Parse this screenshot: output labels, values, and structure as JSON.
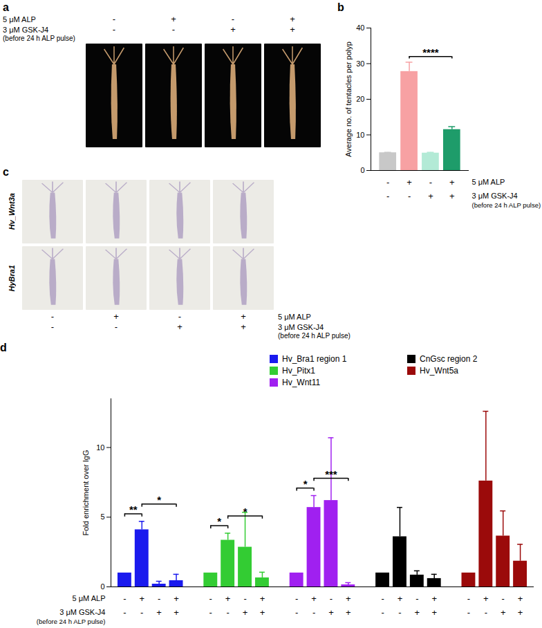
{
  "photo_panels": [
    {
      "title": "a",
      "conditions": [
        {
          "label": "5 μM ALP",
          "values": [
            "-",
            "+",
            "-",
            "+"
          ]
        },
        {
          "label": "3 μM GSK-J4",
          "note": "(before 24 h ALP pulse)",
          "values": [
            "-",
            "-",
            "+",
            "+"
          ]
        }
      ]
    },
    {
      "title": "c",
      "row_labels": [
        "Hv_Wnt3a",
        "HyBra1"
      ],
      "conditions": [
        {
          "label": "5 μM ALP",
          "values": [
            "-",
            "+",
            "-",
            "+"
          ]
        },
        {
          "label": "3 μM GSK-J4",
          "note": "(before 24 h ALP pulse)",
          "values": [
            "-",
            "-",
            "+",
            "+"
          ]
        }
      ]
    }
  ],
  "chart_data": [
    {
      "type": "bar",
      "title": "b",
      "categories": [
        null,
        null,
        null,
        null
      ],
      "values": [
        5,
        27.8,
        4.9,
        11.5
      ],
      "errors": [
        0.1,
        2.6,
        0.2,
        0.8
      ],
      "colors": [
        "#c8c8c8",
        "#f7a1a3",
        "#b3ead6",
        "#1e9c6a"
      ],
      "ylabel": "Average no. of tentacles per polyp",
      "ylim": [
        0,
        40
      ],
      "yticks": [
        0,
        10,
        20,
        30,
        40
      ],
      "tick_labels": "y",
      "significance": [
        {
          "from": 1,
          "to": 3,
          "label": "****"
        }
      ],
      "conditions": [
        {
          "label": "5 μM ALP",
          "values": [
            "-",
            "+",
            "-",
            "+"
          ]
        },
        {
          "label": "3 μM GSK-J4",
          "note": "(before 24 h ALP pulse)",
          "values": [
            "-",
            "-",
            "+",
            "+"
          ]
        }
      ]
    },
    {
      "type": "bar",
      "title": "d",
      "ylabel": "Fold enrichment over IgG",
      "ylim": [
        0,
        13.5
      ],
      "yticks": [
        0,
        5,
        10
      ],
      "tick_labels": "y",
      "legend": "top",
      "series": [
        {
          "name": "Hv_Bra1 region 1",
          "color": "#1a1aee",
          "values": [
            1,
            4.1,
            0.2,
            0.45
          ],
          "errors": [
            0,
            0.6,
            0.2,
            0.45
          ],
          "significance": [
            {
              "from": 0,
              "to": 1,
              "label": "**"
            },
            {
              "from": 1,
              "to": 3,
              "label": "*"
            }
          ]
        },
        {
          "name": "Hv_Pitx1",
          "color": "#33cc33",
          "values": [
            1,
            3.35,
            2.85,
            0.65
          ],
          "errors": [
            0,
            0.5,
            2.5,
            0.4
          ],
          "significance": [
            {
              "from": 0,
              "to": 1,
              "label": "*"
            },
            {
              "from": 1,
              "to": 3,
              "label": "*"
            }
          ]
        },
        {
          "name": "Hv_Wnt11",
          "color": "#a020f0",
          "values": [
            1,
            5.7,
            6.2,
            0.15
          ],
          "errors": [
            0,
            0.85,
            4.5,
            0.15
          ],
          "significance": [
            {
              "from": 0,
              "to": 1,
              "label": "*"
            },
            {
              "from": 1,
              "to": 3,
              "label": "***"
            }
          ]
        },
        {
          "name": "CnGsc region 2",
          "color": "#000000",
          "values": [
            1,
            3.6,
            0.85,
            0.6
          ],
          "errors": [
            0,
            2.1,
            0.3,
            0.3
          ]
        },
        {
          "name": "Hv_Wnt5a",
          "color": "#9b0a0a",
          "values": [
            1,
            7.6,
            3.65,
            1.85
          ],
          "errors": [
            0,
            5.0,
            1.8,
            1.2
          ]
        }
      ],
      "conditions": [
        {
          "label": "5 μM ALP",
          "values": [
            "-",
            "+",
            "-",
            "+"
          ]
        },
        {
          "label": "3 μM GSK-J4",
          "note": "(before 24 h ALP pulse)",
          "values": [
            "-",
            "-",
            "+",
            "+"
          ]
        }
      ]
    }
  ]
}
